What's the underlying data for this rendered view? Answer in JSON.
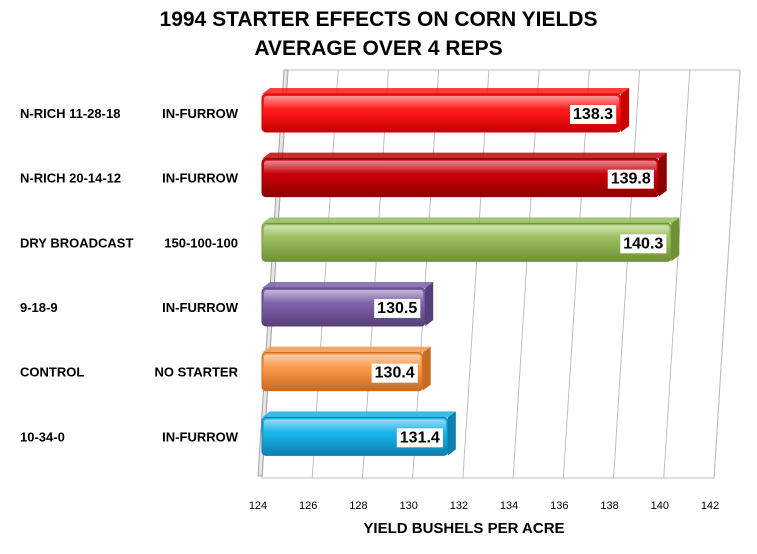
{
  "chart_data": {
    "type": "bar",
    "orientation": "horizontal",
    "title_lines": [
      "1994 STARTER EFFECTS ON CORN YIELDS",
      "AVERAGE OVER 4 REPS"
    ],
    "xlabel": "YIELD BUSHELS PER ACRE",
    "ylabel": "",
    "xlim": [
      124,
      142
    ],
    "xticks": [
      "124",
      "126",
      "128",
      "130",
      "132",
      "134",
      "136",
      "138",
      "140",
      "142"
    ],
    "grid": true,
    "legend": "none",
    "categories": [
      {
        "label_left": "N-RICH 11-28-18",
        "label_right": "IN-FURROW",
        "value": 138.3,
        "value_label": "138.3",
        "color": "#ff1a1a",
        "color_dark": "#c80000"
      },
      {
        "label_left": "N-RICH 20-14-12",
        "label_right": "IN-FURROW",
        "value": 139.8,
        "value_label": "139.8",
        "color": "#c8000a",
        "color_dark": "#8c0000"
      },
      {
        "label_left": "DRY BROADCAST",
        "label_right": "150-100-100",
        "value": 140.3,
        "value_label": "140.3",
        "color": "#98bb5a",
        "color_dark": "#6f9035"
      },
      {
        "label_left": "9-18-9",
        "label_right": "IN-FURROW",
        "value": 130.5,
        "value_label": "130.5",
        "color": "#7e60a8",
        "color_dark": "#56407a"
      },
      {
        "label_left": "CONTROL",
        "label_right": "NO STARTER",
        "value": 130.4,
        "value_label": "130.4",
        "color": "#f79646",
        "color_dark": "#c86a20"
      },
      {
        "label_left": "10-34-0",
        "label_right": "IN-FURROW",
        "value": 131.4,
        "value_label": "131.4",
        "color": "#19b2e8",
        "color_dark": "#0a7fb0"
      }
    ]
  }
}
